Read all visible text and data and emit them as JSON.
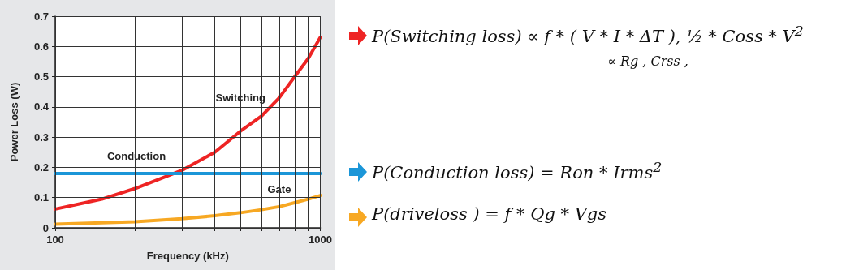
{
  "chart_data": {
    "type": "line",
    "xlabel": "Frequency (kHz)",
    "ylabel": "Power Loss (W)",
    "log": "x",
    "grid": true,
    "legend": false,
    "marker": "none",
    "line_style": "solid",
    "xlim": [
      100,
      1000
    ],
    "xticks": [
      100,
      {
        "value": 200,
        "label": null
      },
      {
        "value": 300,
        "label": null
      },
      {
        "value": 400,
        "label": null
      },
      {
        "value": 500,
        "label": null
      },
      {
        "value": 600,
        "label": null
      },
      {
        "value": 700,
        "label": null
      },
      {
        "value": 800,
        "label": null
      },
      {
        "value": 900,
        "label": null
      },
      1000
    ],
    "ylim": [
      0,
      0.7
    ],
    "yticks": [
      0,
      0.1,
      0.2,
      0.3,
      0.4,
      0.5,
      0.6,
      0.7
    ],
    "series": [
      {
        "name": "Switching",
        "color": "#ee2424",
        "x": [
          100,
          150,
          200,
          300,
          400,
          500,
          600,
          700,
          800,
          900,
          1000
        ],
        "values": [
          0.062,
          0.095,
          0.13,
          0.19,
          0.25,
          0.32,
          0.37,
          0.43,
          0.5,
          0.56,
          0.63
        ]
      },
      {
        "name": "Conduction",
        "color": "#1b96d8",
        "x": [
          100,
          1000
        ],
        "values": [
          0.18,
          0.18
        ]
      },
      {
        "name": "Gate",
        "color": "#f7a823",
        "x": [
          100,
          200,
          300,
          400,
          500,
          600,
          700,
          800,
          900,
          1000
        ],
        "values": [
          0.012,
          0.02,
          0.03,
          0.04,
          0.05,
          0.06,
          0.07,
          0.083,
          0.095,
          0.107
        ]
      }
    ],
    "annotations": [
      "P(Switching loss) ∝ f * ( V * I * ΔT ), ½ * Coss * V$^{2}$",
      "∝ Rg , Crss ,",
      "P(Conduction loss) = Ron * Irms$^{2}$",
      "P(driveloss ) = f * Qg * Vgs"
    ]
  }
}
